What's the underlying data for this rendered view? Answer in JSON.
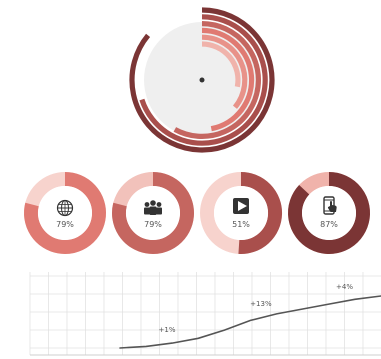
{
  "palette": {
    "darkest": "#7b3535",
    "dark": "#a94f4c",
    "medium": "#c56660",
    "salmon": "#e07a72",
    "light": "#f0b3ab",
    "pale": "#f7d3cd",
    "center_bg": "#efefef",
    "grid": "#e2e2e2",
    "line": "#555555",
    "baseline": "#cfcfcf"
  },
  "chart_data": [
    {
      "type": "radial_bar",
      "title": "",
      "values": [
        86,
        70,
        58,
        47,
        36,
        28
      ],
      "max": 100,
      "colors": [
        "#7b3535",
        "#a94f4c",
        "#c56660",
        "#e07a72",
        "#e89289",
        "#f0b3ab"
      ]
    },
    {
      "type": "pie",
      "title": "",
      "items": [
        {
          "icon": "globe-icon",
          "label": "79%",
          "value": 79,
          "color": "#e07a72",
          "track": "#f7d3cd"
        },
        {
          "icon": "people-icon",
          "label": "79%",
          "value": 79,
          "color": "#c56660",
          "track": "#f2c2bb"
        },
        {
          "icon": "play-icon",
          "label": "51%",
          "value": 51,
          "color": "#a94f4c",
          "track": "#f7d3cd"
        },
        {
          "icon": "phone-icon",
          "label": "87%",
          "value": 87,
          "color": "#7b3535",
          "track": "#f0b3ab"
        }
      ]
    },
    {
      "type": "line",
      "title": "",
      "xlabel": "",
      "ylabel": "",
      "x": [
        0,
        1,
        2,
        3,
        4,
        5,
        6,
        7,
        8,
        9,
        10
      ],
      "y": [
        0,
        1,
        3,
        6,
        11,
        17,
        21,
        24,
        27,
        30,
        32
      ],
      "grid": true,
      "annotations": [
        {
          "text": "+1%",
          "x": 1.8
        },
        {
          "text": "+13%",
          "x": 5.4
        },
        {
          "text": "+4%",
          "x": 8.6
        }
      ]
    }
  ]
}
